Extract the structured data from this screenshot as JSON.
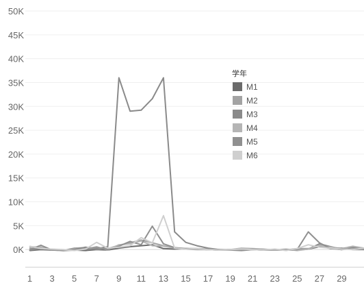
{
  "chart_data": {
    "type": "line",
    "title": "",
    "xlabel": "",
    "ylabel": "",
    "xlim": [
      0.6,
      31
    ],
    "ylim": [
      -5000,
      50000
    ],
    "x_ticks": [
      1,
      3,
      5,
      7,
      9,
      11,
      13,
      15,
      17,
      19,
      21,
      23,
      25,
      27,
      29
    ],
    "y_ticks": [
      {
        "value": 0,
        "label": "0K"
      },
      {
        "value": 5000,
        "label": "5K"
      },
      {
        "value": 10000,
        "label": "10K"
      },
      {
        "value": 15000,
        "label": "15K"
      },
      {
        "value": 20000,
        "label": "20K"
      },
      {
        "value": 25000,
        "label": "25K"
      },
      {
        "value": 30000,
        "label": "30K"
      },
      {
        "value": 35000,
        "label": "35K"
      },
      {
        "value": 40000,
        "label": "40K"
      },
      {
        "value": 45000,
        "label": "45K"
      },
      {
        "value": 50000,
        "label": "50K"
      }
    ],
    "x": [
      1,
      2,
      3,
      4,
      5,
      6,
      7,
      8,
      9,
      10,
      11,
      12,
      13,
      14,
      15,
      16,
      17,
      18,
      19,
      20,
      21,
      22,
      23,
      24,
      25,
      26,
      27,
      28,
      29,
      30,
      31
    ],
    "grid": true,
    "legend": {
      "title": "学年",
      "position": "upper-right"
    },
    "series": [
      {
        "name": "M1",
        "color": "#6b6b6b",
        "values": [
          -200,
          0,
          -100,
          -200,
          -100,
          -200,
          0,
          -100,
          300,
          600,
          800,
          1000,
          200,
          100,
          200,
          100,
          0,
          -100,
          0,
          -100,
          0,
          -100,
          0,
          -100,
          0,
          100,
          600,
          300,
          0,
          500,
          300
        ]
      },
      {
        "name": "M2",
        "color": "#a3a3a3",
        "values": [
          300,
          200,
          0,
          -200,
          300,
          400,
          100,
          200,
          900,
          1400,
          2000,
          1400,
          800,
          300,
          100,
          0,
          0,
          -100,
          -100,
          0,
          0,
          0,
          0,
          -100,
          200,
          200,
          700,
          200,
          0,
          200,
          0
        ]
      },
      {
        "name": "M3",
        "color": "#8a8a8a",
        "values": [
          -100,
          200,
          0,
          -100,
          0,
          500,
          200,
          600,
          36000,
          29000,
          29200,
          31600,
          36000,
          3700,
          1500,
          800,
          300,
          0,
          -100,
          -200,
          0,
          -100,
          -100,
          -100,
          -100,
          100,
          1200,
          600,
          100,
          500,
          200
        ]
      },
      {
        "name": "M4",
        "color": "#b5b5b5",
        "values": [
          600,
          500,
          0,
          -300,
          -100,
          100,
          600,
          -100,
          1000,
          1200,
          1800,
          800,
          700,
          300,
          200,
          100,
          0,
          -100,
          0,
          300,
          200,
          100,
          -100,
          100,
          -200,
          100,
          900,
          500,
          200,
          700,
          300
        ]
      },
      {
        "name": "M5",
        "color": "#909090",
        "values": [
          0,
          900,
          -100,
          -100,
          0,
          100,
          400,
          0,
          700,
          1700,
          1000,
          4900,
          1200,
          400,
          200,
          200,
          100,
          0,
          0,
          -100,
          100,
          -100,
          0,
          -100,
          0,
          3700,
          1400,
          200,
          300,
          0,
          0
        ]
      },
      {
        "name": "M6",
        "color": "#cfcfcf",
        "values": [
          700,
          200,
          100,
          0,
          -200,
          100,
          1500,
          300,
          500,
          800,
          2500,
          1400,
          7100,
          300,
          100,
          200,
          0,
          -100,
          0,
          100,
          0,
          -100,
          100,
          -200,
          200,
          1000,
          500,
          300,
          100,
          0,
          300
        ]
      }
    ]
  }
}
